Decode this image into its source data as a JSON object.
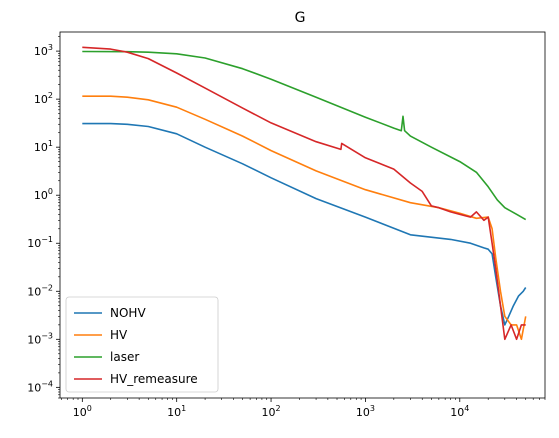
{
  "chart_data": {
    "type": "line",
    "title": "G",
    "xlabel": "",
    "ylabel": "",
    "xscale": "log",
    "yscale": "log",
    "xlim": [
      0.58,
      80000
    ],
    "ylim": [
      6e-05,
      2500
    ],
    "grid": false,
    "legend_position": "lower-left",
    "x_ticks": [
      {
        "value": 1,
        "base": "10",
        "exp": "0"
      },
      {
        "value": 10,
        "base": "10",
        "exp": "1"
      },
      {
        "value": 100,
        "base": "10",
        "exp": "2"
      },
      {
        "value": 1000,
        "base": "10",
        "exp": "3"
      },
      {
        "value": 10000,
        "base": "10",
        "exp": "4"
      }
    ],
    "y_ticks": [
      {
        "value": 0.0001,
        "base": "10",
        "exp": "−4"
      },
      {
        "value": 0.001,
        "base": "10",
        "exp": "−3"
      },
      {
        "value": 0.01,
        "base": "10",
        "exp": "−2"
      },
      {
        "value": 0.1,
        "base": "10",
        "exp": "−1"
      },
      {
        "value": 1,
        "base": "10",
        "exp": "0"
      },
      {
        "value": 10,
        "base": "10",
        "exp": "1"
      },
      {
        "value": 100,
        "base": "10",
        "exp": "2"
      },
      {
        "value": 1000,
        "base": "10",
        "exp": "3"
      }
    ],
    "series": [
      {
        "name": "NOHV",
        "color": "#1f77b4",
        "points": [
          [
            1,
            31
          ],
          [
            2,
            31
          ],
          [
            3,
            30
          ],
          [
            5,
            27
          ],
          [
            10,
            19
          ],
          [
            20,
            10
          ],
          [
            50,
            4.5
          ],
          [
            100,
            2.3
          ],
          [
            300,
            0.85
          ],
          [
            1000,
            0.35
          ],
          [
            3000,
            0.15
          ],
          [
            8000,
            0.12
          ],
          [
            13000,
            0.1
          ],
          [
            18000,
            0.08
          ],
          [
            20000,
            0.075
          ],
          [
            22000,
            0.06
          ],
          [
            24000,
            0.02
          ],
          [
            27000,
            0.005
          ],
          [
            30000,
            0.002
          ],
          [
            33000,
            0.003
          ],
          [
            37000,
            0.005
          ],
          [
            42000,
            0.008
          ],
          [
            47000,
            0.01
          ],
          [
            50000,
            0.012
          ]
        ]
      },
      {
        "name": "HV",
        "color": "#ff7f0e",
        "points": [
          [
            1,
            115
          ],
          [
            2,
            115
          ],
          [
            3,
            110
          ],
          [
            5,
            97
          ],
          [
            10,
            68
          ],
          [
            20,
            38
          ],
          [
            50,
            17
          ],
          [
            100,
            8.5
          ],
          [
            300,
            3.2
          ],
          [
            1000,
            1.3
          ],
          [
            3000,
            0.7
          ],
          [
            6000,
            0.55
          ],
          [
            10000,
            0.42
          ],
          [
            15000,
            0.33
          ],
          [
            20000,
            0.35
          ],
          [
            22000,
            0.2
          ],
          [
            24000,
            0.05
          ],
          [
            27000,
            0.01
          ],
          [
            30000,
            0.003
          ],
          [
            35000,
            0.002
          ],
          [
            40000,
            0.002
          ],
          [
            45000,
            0.001
          ],
          [
            50000,
            0.003
          ]
        ]
      },
      {
        "name": "laser",
        "color": "#2ca02c",
        "points": [
          [
            1,
            980
          ],
          [
            3,
            970
          ],
          [
            5,
            950
          ],
          [
            10,
            880
          ],
          [
            20,
            720
          ],
          [
            50,
            430
          ],
          [
            100,
            260
          ],
          [
            300,
            110
          ],
          [
            1000,
            42
          ],
          [
            2000,
            25
          ],
          [
            2400,
            22
          ],
          [
            2500,
            44
          ],
          [
            2600,
            22
          ],
          [
            3000,
            17
          ],
          [
            5000,
            10
          ],
          [
            10000,
            5
          ],
          [
            15000,
            3
          ],
          [
            20000,
            1.5
          ],
          [
            25000,
            0.8
          ],
          [
            30000,
            0.55
          ],
          [
            40000,
            0.4
          ],
          [
            50000,
            0.31
          ]
        ]
      },
      {
        "name": "HV_remeasure",
        "color": "#d62728",
        "points": [
          [
            1,
            1200
          ],
          [
            2,
            1100
          ],
          [
            3,
            950
          ],
          [
            5,
            700
          ],
          [
            10,
            350
          ],
          [
            20,
            170
          ],
          [
            50,
            65
          ],
          [
            100,
            32
          ],
          [
            300,
            13
          ],
          [
            550,
            9
          ],
          [
            560,
            12
          ],
          [
            1000,
            6
          ],
          [
            2000,
            3.5
          ],
          [
            3000,
            1.8
          ],
          [
            4000,
            1.2
          ],
          [
            5000,
            0.6
          ],
          [
            6000,
            0.55
          ],
          [
            8000,
            0.45
          ],
          [
            10000,
            0.4
          ],
          [
            13000,
            0.35
          ],
          [
            15000,
            0.45
          ],
          [
            18000,
            0.3
          ],
          [
            20000,
            0.35
          ],
          [
            22000,
            0.1
          ],
          [
            24000,
            0.03
          ],
          [
            27000,
            0.005
          ],
          [
            30000,
            0.001
          ],
          [
            35000,
            0.002
          ],
          [
            40000,
            0.001
          ],
          [
            45000,
            0.002
          ],
          [
            50000,
            0.002
          ]
        ]
      }
    ]
  }
}
